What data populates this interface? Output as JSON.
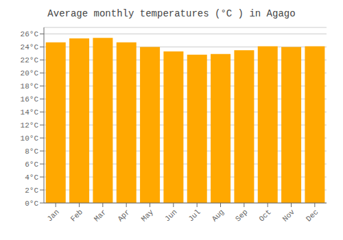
{
  "chart_data": {
    "type": "bar",
    "title": "Average monthly temperatures (°C ) in Agago",
    "categories": [
      "Jan",
      "Feb",
      "Mar",
      "Apr",
      "May",
      "Jun",
      "Jul",
      "Aug",
      "Sep",
      "Oct",
      "Nov",
      "Dec"
    ],
    "values": [
      24.7,
      25.3,
      25.4,
      24.7,
      24.0,
      23.3,
      22.8,
      22.9,
      23.5,
      24.1,
      24.0,
      24.1
    ],
    "color": "#FFA800",
    "ylim": [
      0,
      27
    ],
    "yticks": [
      {
        "value": 0,
        "label": "0°C"
      },
      {
        "value": 2,
        "label": "2°C"
      },
      {
        "value": 4,
        "label": "4°C"
      },
      {
        "value": 6,
        "label": "6°C"
      },
      {
        "value": 8,
        "label": "8°C"
      },
      {
        "value": 10,
        "label": "10°C"
      },
      {
        "value": 12,
        "label": "12°C"
      },
      {
        "value": 14,
        "label": "14°C"
      },
      {
        "value": 16,
        "label": "16°C"
      },
      {
        "value": 18,
        "label": "18°C"
      },
      {
        "value": 20,
        "label": "20°C"
      },
      {
        "value": 22,
        "label": "22°C"
      },
      {
        "value": 24,
        "label": "24°C"
      },
      {
        "value": 26,
        "label": "26°C"
      }
    ],
    "grid": true
  }
}
